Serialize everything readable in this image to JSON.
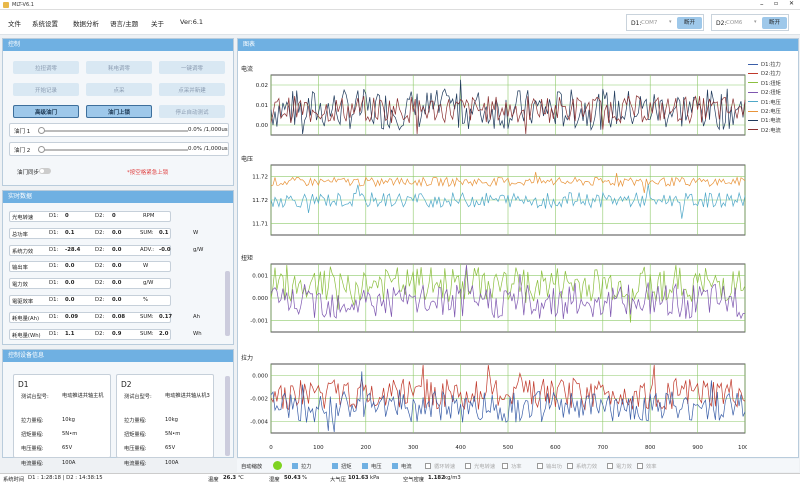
{
  "window": {
    "title": "MLT-V6.1"
  },
  "menu": {
    "items": [
      "文件",
      "系统设置",
      "数据分析",
      "语言/主题",
      "关于"
    ],
    "version": "Ver:6.1"
  },
  "ports": [
    {
      "label": "D1:",
      "value": "COM7",
      "button": "断开"
    },
    {
      "label": "D2:",
      "value": "COM6",
      "button": "断开"
    }
  ],
  "control": {
    "title": "控制",
    "buttons": [
      {
        "label": "拉扭调零",
        "active": false
      },
      {
        "label": "耗电调零",
        "active": false
      },
      {
        "label": "一键调零",
        "active": false
      },
      {
        "label": "开始记录",
        "active": false
      },
      {
        "label": "点采",
        "active": false
      },
      {
        "label": "点采并新建",
        "active": false
      },
      {
        "label": "高级油门",
        "active": true
      },
      {
        "label": "油门上锁",
        "active": true
      },
      {
        "label": "停止自动测试",
        "active": false
      }
    ],
    "throttles": [
      {
        "label": "油门 1",
        "value": "0.0% /1,000us",
        "level": 0
      },
      {
        "label": "油门 2",
        "value": "0.0% /1,000us",
        "level": 0
      }
    ],
    "sync_label": "油门同步",
    "warning": "*按空格紧急上锁"
  },
  "realtime": {
    "title": "实时数据",
    "rows": [
      {
        "name": "光电转速",
        "d1": "0",
        "d2": "0",
        "sum": "",
        "unit": "RPM"
      },
      {
        "name": "总功率",
        "d1": "0.1",
        "d2": "0.0",
        "sum": "0.1",
        "unit": "W"
      },
      {
        "name": "系统力效",
        "d1": "-28.4",
        "d2": "0.0",
        "sum": "-0.0",
        "sum_label": "ADV.:",
        "unit": "g/W"
      },
      {
        "name": "输出率",
        "d1": "0.0",
        "d2": "0.0",
        "sum": "",
        "unit": "W"
      },
      {
        "name": "電力效",
        "d1": "0.0",
        "d2": "0.0",
        "sum": "",
        "unit": "g/W"
      },
      {
        "name": "電驱效率",
        "d1": "0.0",
        "d2": "0.0",
        "sum": "",
        "unit": "%"
      },
      {
        "name": "耗电量(Ah)",
        "d1": "0.09",
        "d2": "0.08",
        "sum": "0.17",
        "unit": "Ah"
      },
      {
        "name": "耗电量(Wh)",
        "d1": "1.1",
        "d2": "0.9",
        "sum": "2.0",
        "unit": "Wh"
      }
    ],
    "labels": {
      "d1": "D1:",
      "d2": "D2:",
      "sum": "SUM:"
    }
  },
  "devices": {
    "title": "控制设备信息",
    "cards": [
      {
        "name": "D1",
        "rows": [
          [
            "测试台型号:",
            "电动推进共轴主机"
          ],
          [
            "拉力量程:",
            "10kg"
          ],
          [
            "扭矩量程:",
            "5N•m"
          ],
          [
            "电压量程:",
            "65V"
          ],
          [
            "电流量程:",
            "100A"
          ]
        ]
      },
      {
        "name": "D2",
        "rows": [
          [
            "测试台型号:",
            "电动推进共轴从机3"
          ],
          [
            "拉力量程:",
            "10kg"
          ],
          [
            "扭矩量程:",
            "5N•m"
          ],
          [
            "电压量程:",
            "65V"
          ],
          [
            "电流量程:",
            "100A"
          ]
        ]
      }
    ]
  },
  "chart": {
    "title": "图表",
    "legend": [
      {
        "name": "D1:拉力",
        "color": "#3b5fa8"
      },
      {
        "name": "D2:拉力",
        "color": "#c0392b"
      },
      {
        "name": "D1:扭矩",
        "color": "#8cbf3f"
      },
      {
        "name": "D2:扭矩",
        "color": "#7e57b0"
      },
      {
        "name": "D1:电压",
        "color": "#4fa8c8"
      },
      {
        "name": "D2:电压",
        "color": "#e8943a"
      },
      {
        "name": "D1:电流",
        "color": "#1f3a5c"
      },
      {
        "name": "D2:电流",
        "color": "#8a3030"
      }
    ]
  },
  "chart_data": {
    "type": "line",
    "x_range": [
      0,
      1000
    ],
    "x_ticks": [
      0,
      100,
      200,
      300,
      400,
      500,
      600,
      700,
      800,
      900,
      1000
    ],
    "subplots": [
      {
        "label": "电流",
        "yticks": [
          "0.02",
          "0.01",
          "0.00"
        ],
        "ylim": [
          -0.005,
          0.03
        ],
        "series": [
          {
            "name": "D1:电流",
            "base": 0.01,
            "amp": 0.012
          },
          {
            "name": "D2:电流",
            "base": 0.01,
            "amp": 0.008
          }
        ]
      },
      {
        "label": "电压",
        "yticks": [
          "11.72",
          "11.72",
          "11.71"
        ],
        "ylim": [
          11.705,
          11.728
        ],
        "series": [
          {
            "name": "D2:电压",
            "base": 11.7225,
            "amp": 0.0015
          },
          {
            "name": "D1:电压",
            "base": 11.7165,
            "amp": 0.0025
          }
        ]
      },
      {
        "label": "扭矩",
        "yticks": [
          "0.001",
          "0.000",
          "-0.001"
        ],
        "ylim": [
          -0.0015,
          0.0012
        ],
        "series": [
          {
            "name": "D1:扭矩",
            "base": 0.0004,
            "amp": 0.0007
          },
          {
            "name": "D2:扭矩",
            "base": -0.0003,
            "amp": 0.0007
          }
        ]
      },
      {
        "label": "拉力",
        "yticks": [
          "0.000",
          "-0.002",
          "-0.004"
        ],
        "ylim": [
          -0.0045,
          0.0008
        ],
        "series": [
          {
            "name": "D2:拉力",
            "base": -0.0015,
            "amp": 0.0012
          },
          {
            "name": "D1:拉力",
            "base": -0.0025,
            "amp": 0.0012
          }
        ]
      }
    ]
  },
  "options": {
    "auto_scale": "自动缩放",
    "checks": [
      {
        "label": "拉力",
        "checked": true
      },
      {
        "label": "扭矩",
        "checked": true
      },
      {
        "label": "电压",
        "checked": true
      },
      {
        "label": "电流",
        "checked": true
      },
      {
        "label": "循环转速",
        "checked": false
      },
      {
        "label": "光电转速",
        "checked": false
      },
      {
        "label": "功率",
        "checked": false
      },
      {
        "label": "输出功",
        "checked": false
      },
      {
        "label": "系统力效",
        "checked": false
      },
      {
        "label": "電力效",
        "checked": false
      },
      {
        "label": "效率",
        "checked": false
      }
    ]
  },
  "status": {
    "record_time_label": "系统时间",
    "record_time": "D1 : 1:28:18 | D2 : 14:38:15",
    "temp_label": "温度",
    "temp": "26.3",
    "temp_unit": "℃",
    "humidity_label": "湿度",
    "humidity": "50.43",
    "humidity_unit": "%",
    "pressure_label": "大气压",
    "pressure": "101.63",
    "pressure_unit": "kPa",
    "density_label": "空气密度",
    "density": "1.182",
    "density_unit": "kg/m3"
  }
}
